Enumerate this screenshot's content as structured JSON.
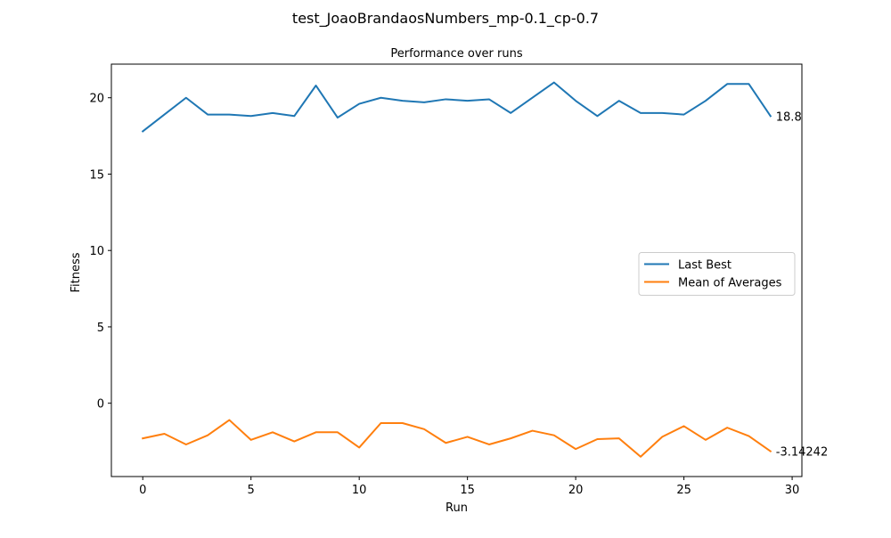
{
  "figure": {
    "suptitle": "test_JoaoBrandaosNumbers_mp-0.1_cp-0.7"
  },
  "chart_data": {
    "type": "line",
    "title": "Performance over runs",
    "xlabel": "Run",
    "ylabel": "Fitness",
    "xlim": [
      -1.45,
      30.45
    ],
    "ylim": [
      -4.8,
      22.2
    ],
    "xticks": [
      0,
      5,
      10,
      15,
      20,
      25,
      30
    ],
    "yticks": [
      0,
      5,
      10,
      15,
      20
    ],
    "grid": false,
    "legend_position": "center-right",
    "x": [
      0,
      1,
      2,
      3,
      4,
      5,
      6,
      7,
      8,
      9,
      10,
      11,
      12,
      13,
      14,
      15,
      16,
      17,
      18,
      19,
      20,
      21,
      22,
      23,
      24,
      25,
      26,
      27,
      28,
      29
    ],
    "series": [
      {
        "name": "Last Best",
        "color": "#1f77b4",
        "values": [
          17.8,
          18.9,
          20.0,
          18.9,
          18.9,
          18.8,
          19.0,
          18.8,
          20.8,
          18.7,
          19.6,
          20.0,
          19.8,
          19.7,
          19.9,
          19.8,
          19.9,
          19.0,
          20.0,
          21.0,
          19.8,
          18.8,
          19.8,
          19.0,
          19.0,
          18.9,
          19.8,
          20.9,
          20.9,
          18.8
        ],
        "end_label": "18.8"
      },
      {
        "name": "Mean of Averages",
        "color": "#ff7f0e",
        "values": [
          -2.3,
          -2.0,
          -2.7,
          -2.1,
          -1.1,
          -2.4,
          -1.9,
          -2.5,
          -1.9,
          -1.9,
          -2.9,
          -1.3,
          -1.3,
          -1.7,
          -2.6,
          -2.2,
          -2.7,
          -2.3,
          -1.8,
          -2.1,
          -3.0,
          -2.35,
          -2.3,
          -3.5,
          -2.2,
          -1.5,
          -2.4,
          -1.6,
          -2.15,
          -3.14242
        ],
        "end_label": "-3.14242"
      }
    ]
  }
}
